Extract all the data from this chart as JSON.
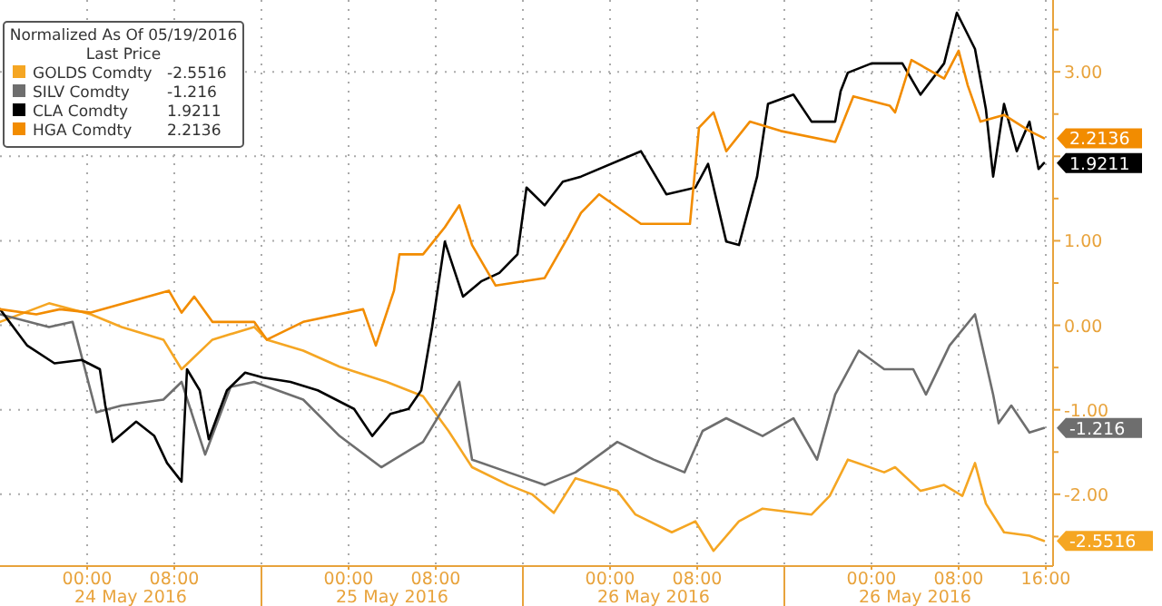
{
  "chart_data": {
    "type": "line",
    "legend_title": "Normalized As Of 05/19/2016\nLast Price",
    "legend": "top left",
    "grid": true,
    "line_style": "solid",
    "marker": "none",
    "xlim": [
      "2016-05-23T16:00",
      "2016-05-27T16:40"
    ],
    "ylim": [
      -2.85,
      3.85
    ],
    "xticks": [
      {
        "value": "2016-05-24T00:00",
        "label": "00:00"
      },
      {
        "value": "2016-05-24T08:00",
        "label": "08:00"
      },
      {
        "value": "2016-05-24T16:00",
        "label": null
      },
      {
        "value": "2016-05-25T00:00",
        "label": "00:00"
      },
      {
        "value": "2016-05-25T08:00",
        "label": "08:00"
      },
      {
        "value": "2016-05-25T16:00",
        "label": null
      },
      {
        "value": "2016-05-26T00:00",
        "label": "00:00"
      },
      {
        "value": "2016-05-26T08:00",
        "label": "08:00"
      },
      {
        "value": "2016-05-26T16:00",
        "label": null
      },
      {
        "value": "2016-05-27T00:00",
        "label": "00:00"
      },
      {
        "value": "2016-05-27T08:00",
        "label": "08:00"
      },
      {
        "value": "2016-05-27T16:00",
        "label": "16:00"
      }
    ],
    "annotations": [
      "24 May 2016",
      "25 May 2016",
      "26 May 2016",
      "26 May 2016"
    ],
    "yticks": [
      {
        "value": -2.5,
        "label": null
      },
      {
        "value": -2,
        "label": "-2.00"
      },
      {
        "value": -1.5,
        "label": null
      },
      {
        "value": -1,
        "label": "-1.00"
      },
      {
        "value": -0.5,
        "label": null
      },
      {
        "value": 0,
        "label": "0.00"
      },
      {
        "value": 0.5,
        "label": null
      },
      {
        "value": 1,
        "label": "1.00"
      },
      {
        "value": 1.5,
        "label": null
      },
      {
        "value": 2,
        "label": null
      },
      {
        "value": 2.5,
        "label": null
      },
      {
        "value": 3,
        "label": "3.00"
      },
      {
        "value": 3.5,
        "label": null
      }
    ],
    "series": [
      {
        "name": "GOLDS Comdty",
        "color": "#f5a623",
        "x": [
          "2016-05-23T16:00",
          "2016-05-23T20:30",
          "2016-05-24T00:20",
          "2016-05-24T03:10",
          "2016-05-24T07:00",
          "2016-05-24T08:40",
          "2016-05-24T11:30",
          "2016-05-24T15:20",
          "2016-05-24T16:30",
          "2016-05-24T19:50",
          "2016-05-24T23:10",
          "2016-05-25T03:30",
          "2016-05-25T06:50",
          "2016-05-25T09:10",
          "2016-05-25T11:20",
          "2016-05-25T14:40",
          "2016-05-25T16:50",
          "2016-05-25T18:50",
          "2016-05-25T20:50",
          "2016-05-26T00:40",
          "2016-05-26T02:20",
          "2016-05-26T05:40",
          "2016-05-26T07:50",
          "2016-05-26T09:30",
          "2016-05-26T11:50",
          "2016-05-26T14:00",
          "2016-05-26T18:30",
          "2016-05-26T20:10",
          "2016-05-26T21:50",
          "2016-05-27T01:10",
          "2016-05-27T02:10",
          "2016-05-27T04:30",
          "2016-05-27T06:40",
          "2016-05-27T08:20",
          "2016-05-27T09:30",
          "2016-05-27T10:30",
          "2016-05-27T12:10",
          "2016-05-27T14:30",
          "2016-05-27T15:50"
        ],
        "values": [
          0.04,
          0.26,
          0.13,
          -0.02,
          -0.17,
          -0.52,
          -0.17,
          -0.02,
          -0.17,
          -0.3,
          -0.49,
          -0.67,
          -0.84,
          -1.25,
          -1.68,
          -1.89,
          -2,
          -2.22,
          -1.81,
          -1.96,
          -2.24,
          -2.45,
          -2.32,
          -2.67,
          -2.32,
          -2.17,
          -2.24,
          -2.02,
          -1.59,
          -1.74,
          -1.68,
          -1.96,
          -1.89,
          -2.02,
          -1.63,
          -2.11,
          -2.45,
          -2.49,
          -2.5516
        ],
        "value_labels": [
          null,
          null,
          null,
          null,
          null,
          null,
          null,
          null,
          null,
          null,
          null,
          null,
          null,
          null,
          null,
          null,
          null,
          null,
          null,
          null,
          null,
          null,
          null,
          null,
          null,
          null,
          null,
          null,
          null,
          null,
          null,
          null,
          null,
          null,
          null,
          null,
          null,
          null,
          "-2.5516"
        ]
      },
      {
        "name": "SILV Comdty",
        "color": "#6e6e6e",
        "x": [
          "2016-05-23T16:00",
          "2016-05-23T20:30",
          "2016-05-23T22:40",
          "2016-05-24T00:50",
          "2016-05-24T03:10",
          "2016-05-24T07:00",
          "2016-05-24T08:40",
          "2016-05-24T10:50",
          "2016-05-24T13:10",
          "2016-05-24T15:20",
          "2016-05-24T19:50",
          "2016-05-24T23:10",
          "2016-05-25T03:00",
          "2016-05-25T06:50",
          "2016-05-25T10:10",
          "2016-05-25T11:20",
          "2016-05-25T14:40",
          "2016-05-25T18:00",
          "2016-05-25T20:50",
          "2016-05-26T00:40",
          "2016-05-26T04:00",
          "2016-05-26T06:50",
          "2016-05-26T08:30",
          "2016-05-26T10:40",
          "2016-05-26T14:00",
          "2016-05-26T16:50",
          "2016-05-26T19:00",
          "2016-05-26T20:40",
          "2016-05-26T22:50",
          "2016-05-27T01:10",
          "2016-05-27T03:50",
          "2016-05-27T05:00",
          "2016-05-27T07:10",
          "2016-05-27T09:30",
          "2016-05-27T11:10",
          "2016-05-27T11:40",
          "2016-05-27T12:50",
          "2016-05-27T14:30",
          "2016-05-27T15:50"
        ],
        "values": [
          0.13,
          -0.02,
          0.04,
          -1.03,
          -0.95,
          -0.88,
          -0.67,
          -1.53,
          -0.73,
          -0.67,
          -0.88,
          -1.31,
          -1.68,
          -1.38,
          -0.67,
          -1.59,
          -1.74,
          -1.89,
          -1.74,
          -1.38,
          -1.59,
          -1.74,
          -1.25,
          -1.1,
          -1.31,
          -1.1,
          -1.59,
          -0.82,
          -0.3,
          -0.52,
          -0.52,
          -0.82,
          -0.24,
          0.13,
          -0.82,
          -1.16,
          -0.95,
          -1.27,
          -1.216
        ],
        "value_labels": [
          null,
          null,
          null,
          null,
          null,
          null,
          null,
          null,
          null,
          null,
          null,
          null,
          null,
          null,
          null,
          null,
          null,
          null,
          null,
          null,
          null,
          null,
          null,
          null,
          null,
          null,
          null,
          null,
          null,
          null,
          null,
          null,
          null,
          null,
          null,
          null,
          null,
          null,
          "-1.216"
        ]
      },
      {
        "name": "CLA Comdty",
        "color": "#000000",
        "x": [
          "2016-05-23T16:00",
          "2016-05-23T18:30",
          "2016-05-23T21:00",
          "2016-05-23T23:30",
          "2016-05-24T01:10",
          "2016-05-24T01:40",
          "2016-05-24T02:20",
          "2016-05-24T04:30",
          "2016-05-24T06:10",
          "2016-05-24T07:20",
          "2016-05-24T08:40",
          "2016-05-24T09:10",
          "2016-05-24T10:20",
          "2016-05-24T11:10",
          "2016-05-24T12:50",
          "2016-05-24T14:30",
          "2016-05-24T16:10",
          "2016-05-24T18:40",
          "2016-05-24T21:10",
          "2016-05-24T22:50",
          "2016-05-25T00:30",
          "2016-05-25T02:10",
          "2016-05-25T03:50",
          "2016-05-25T05:30",
          "2016-05-25T06:40",
          "2016-05-25T07:40",
          "2016-05-25T08:50",
          "2016-05-25T10:30",
          "2016-05-25T12:10",
          "2016-05-25T13:50",
          "2016-05-25T15:30",
          "2016-05-25T16:20",
          "2016-05-25T18:00",
          "2016-05-25T19:40",
          "2016-05-25T21:20",
          "2016-05-26T02:50",
          "2016-05-26T05:10",
          "2016-05-26T07:50",
          "2016-05-26T09:00",
          "2016-05-26T10:40",
          "2016-05-26T11:50",
          "2016-05-26T13:30",
          "2016-05-26T14:30",
          "2016-05-26T16:50",
          "2016-05-26T18:30",
          "2016-05-26T20:40",
          "2016-05-26T21:10",
          "2016-05-26T21:50",
          "2016-05-27T00:00",
          "2016-05-27T02:50",
          "2016-05-27T04:30",
          "2016-05-27T06:40",
          "2016-05-27T07:50",
          "2016-05-27T09:30",
          "2016-05-27T10:30",
          "2016-05-27T11:10",
          "2016-05-27T12:10",
          "2016-05-27T13:20",
          "2016-05-27T14:30",
          "2016-05-27T15:20",
          "2016-05-27T15:50"
        ],
        "values": [
          0.19,
          -0.24,
          -0.45,
          -0.41,
          -0.52,
          -0.95,
          -1.38,
          -1.14,
          -1.31,
          -1.63,
          -1.85,
          -0.52,
          -0.77,
          -1.35,
          -0.77,
          -0.56,
          -0.62,
          -0.67,
          -0.77,
          -0.88,
          -0.99,
          -1.31,
          -1.05,
          -0.99,
          -0.77,
          -0.02,
          0.99,
          0.34,
          0.52,
          0.62,
          0.84,
          1.63,
          1.42,
          1.7,
          1.76,
          2.06,
          1.55,
          1.63,
          1.91,
          0.99,
          0.95,
          1.76,
          2.62,
          2.73,
          2.41,
          2.41,
          2.77,
          2.99,
          3.1,
          3.1,
          2.73,
          3.1,
          3.7,
          3.27,
          2.56,
          1.76,
          2.62,
          2.06,
          2.41,
          1.85,
          1.9211
        ],
        "value_labels": [
          null,
          null,
          null,
          null,
          null,
          null,
          null,
          null,
          null,
          null,
          null,
          null,
          null,
          null,
          null,
          null,
          null,
          null,
          null,
          null,
          null,
          null,
          null,
          null,
          null,
          null,
          null,
          null,
          null,
          null,
          null,
          null,
          null,
          null,
          null,
          null,
          null,
          null,
          null,
          null,
          null,
          null,
          null,
          null,
          null,
          null,
          null,
          null,
          null,
          null,
          null,
          null,
          null,
          null,
          null,
          null,
          null,
          null,
          null,
          null,
          "1.9211"
        ]
      },
      {
        "name": "HGA Comdty",
        "color": "#f28c00",
        "x": [
          "2016-05-23T16:00",
          "2016-05-23T19:20",
          "2016-05-23T21:30",
          "2016-05-24T00:20",
          "2016-05-24T07:30",
          "2016-05-24T08:40",
          "2016-05-24T09:50",
          "2016-05-24T11:30",
          "2016-05-24T15:20",
          "2016-05-24T16:30",
          "2016-05-24T19:50",
          "2016-05-25T01:20",
          "2016-05-25T02:30",
          "2016-05-25T04:10",
          "2016-05-25T04:40",
          "2016-05-25T06:50",
          "2016-05-25T08:50",
          "2016-05-25T10:10",
          "2016-05-25T11:20",
          "2016-05-25T12:30",
          "2016-05-25T13:30",
          "2016-05-25T18:00",
          "2016-05-25T20:10",
          "2016-05-25T21:20",
          "2016-05-25T23:00",
          "2016-05-26T02:50",
          "2016-05-26T07:20",
          "2016-05-26T08:10",
          "2016-05-26T09:30",
          "2016-05-26T10:40",
          "2016-05-26T12:50",
          "2016-05-26T15:40",
          "2016-05-26T20:40",
          "2016-05-26T22:20",
          "2016-05-27T01:40",
          "2016-05-27T02:10",
          "2016-05-27T03:40",
          "2016-05-27T06:40",
          "2016-05-27T08:00",
          "2016-05-27T08:50",
          "2016-05-27T10:00",
          "2016-05-27T12:10",
          "2016-05-27T14:30",
          "2016-05-27T15:50"
        ],
        "values": [
          0.19,
          0.13,
          0.19,
          0.15,
          0.41,
          0.15,
          0.34,
          0.04,
          0.04,
          -0.17,
          0.04,
          0.19,
          -0.24,
          0.41,
          0.84,
          0.84,
          1.16,
          1.42,
          0.95,
          0.69,
          0.47,
          0.56,
          1.05,
          1.33,
          1.55,
          1.2,
          1.2,
          2.34,
          2.52,
          2.06,
          2.41,
          2.3,
          2.17,
          2.71,
          2.6,
          2.52,
          3.14,
          2.92,
          3.25,
          2.84,
          2.41,
          2.49,
          2.3,
          2.2136
        ],
        "value_labels": [
          null,
          null,
          null,
          null,
          null,
          null,
          null,
          null,
          null,
          null,
          null,
          null,
          null,
          null,
          null,
          null,
          null,
          null,
          null,
          null,
          null,
          null,
          null,
          null,
          null,
          null,
          null,
          null,
          null,
          null,
          null,
          null,
          null,
          null,
          null,
          null,
          null,
          null,
          null,
          null,
          null,
          null,
          null,
          "2.2136"
        ]
      }
    ]
  }
}
